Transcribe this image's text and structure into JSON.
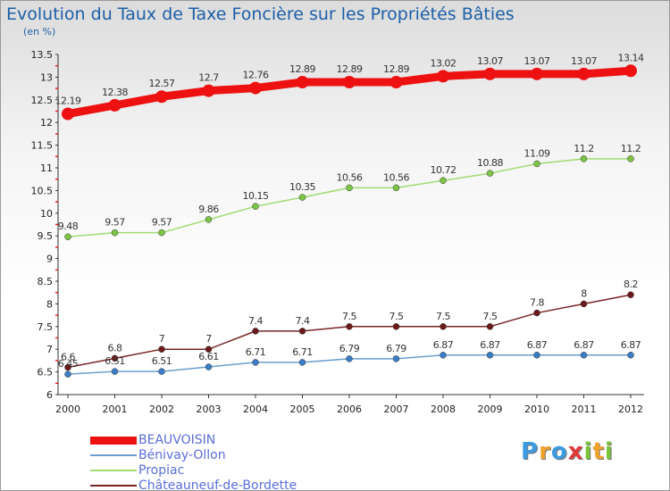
{
  "title": "Evolution du Taux de Taxe Foncière sur les Propriétés Bâties",
  "unit_label": "(en %)",
  "logo": {
    "letters": [
      "P",
      "r",
      "o",
      "x",
      "i",
      "t",
      "i"
    ],
    "colors": [
      "#3a9be0",
      "#f2a22a",
      "#3a9be0",
      "#e03a3a",
      "#7bc43a",
      "#f2a22a",
      "#7bc43a"
    ]
  },
  "chart_data": {
    "type": "line",
    "x": [
      "2000",
      "2001",
      "2002",
      "2003",
      "2004",
      "2005",
      "2006",
      "2007",
      "2008",
      "2009",
      "2010",
      "2011",
      "2012"
    ],
    "ylim": [
      6,
      13.5
    ],
    "yticks": [
      "6",
      "6.5",
      "7",
      "7.5",
      "8",
      "8.5",
      "9",
      "9.5",
      "10",
      "10.5",
      "11",
      "11.5",
      "12",
      "12.5",
      "13",
      "13.5"
    ],
    "grid": false,
    "legend_position": "bottom-left",
    "series": [
      {
        "name": "BEAUVOISIN",
        "color": "#ee1111",
        "width": 9,
        "marker": 7,
        "values": [
          12.19,
          12.38,
          12.57,
          12.7,
          12.76,
          12.89,
          12.89,
          12.89,
          13.02,
          13.07,
          13.07,
          13.07,
          13.14
        ],
        "labels": [
          "12.19",
          "12.38",
          "12.57",
          "12.7",
          "12.76",
          "12.89",
          "12.89",
          "12.89",
          "13.02",
          "13.07",
          "13.07",
          "13.07",
          "13.14"
        ]
      },
      {
        "name": "Bénivay-Ollon",
        "color": "#6b9fcf",
        "marker_color": "#3a7dc4",
        "width": 1.5,
        "marker": 3.5,
        "values": [
          6.45,
          6.51,
          6.51,
          6.61,
          6.71,
          6.71,
          6.79,
          6.79,
          6.87,
          6.87,
          6.87,
          6.87,
          6.87
        ],
        "labels": [
          "6.45",
          "6.51",
          "6.51",
          "6.61",
          "6.71",
          "6.71",
          "6.79",
          "6.79",
          "6.87",
          "6.87",
          "6.87",
          "6.87",
          "6.87"
        ]
      },
      {
        "name": "Propiac",
        "color": "#9fdc72",
        "marker_color": "#7cc444",
        "width": 1.5,
        "marker": 3.5,
        "values": [
          9.48,
          9.57,
          9.57,
          9.86,
          10.15,
          10.35,
          10.56,
          10.56,
          10.72,
          10.88,
          11.09,
          11.2,
          11.2
        ],
        "labels": [
          "9.48",
          "9.57",
          "9.57",
          "9.86",
          "10.15",
          "10.35",
          "10.56",
          "10.56",
          "10.72",
          "10.88",
          "11.09",
          "11.2",
          "11.2"
        ]
      },
      {
        "name": "Châteauneuf-de-Bordette",
        "color": "#7a2424",
        "marker_color": "#6b1a1a",
        "width": 1.5,
        "marker": 3.5,
        "values": [
          6.6,
          6.8,
          7,
          7,
          7.4,
          7.4,
          7.5,
          7.5,
          7.5,
          7.5,
          7.8,
          8,
          8.2
        ],
        "labels": [
          "6.6",
          "6.8",
          "7",
          "7",
          "7.4",
          "7.4",
          "7.5",
          "7.5",
          "7.5",
          "7.5",
          "7.8",
          "8",
          "8.2"
        ]
      }
    ]
  }
}
